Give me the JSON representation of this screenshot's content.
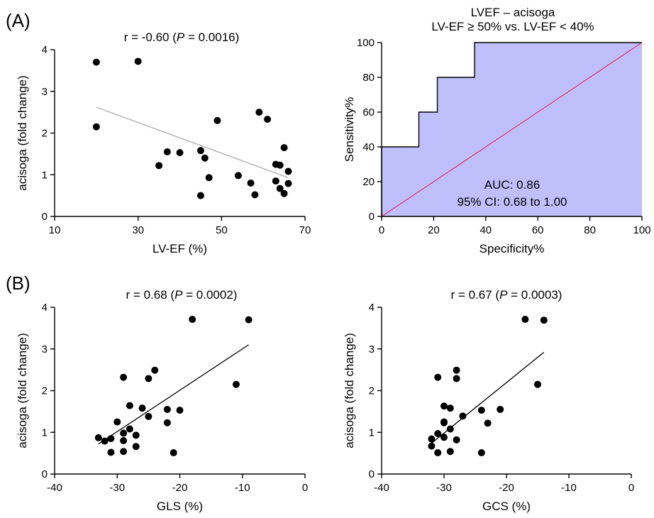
{
  "panel_labels": {
    "a": "(A)",
    "b": "(B)"
  },
  "chart_data": [
    {
      "id": "scatter-lvef",
      "type": "scatter",
      "title": "r = -0.60 (P = 0.0016)",
      "title_parts": [
        "r = -0.60 (",
        "P",
        " = 0.0016)"
      ],
      "xlabel": "LV-EF (%)",
      "ylabel": "acisoga (fold change)",
      "xlim": [
        10,
        70
      ],
      "ylim": [
        0,
        4
      ],
      "xticks": [
        10,
        30,
        50,
        70
      ],
      "yticks": [
        0,
        1,
        2,
        3,
        4
      ],
      "fit_line": {
        "x": [
          20,
          66
        ],
        "y": [
          2.62,
          0.93
        ],
        "color": "#aaaaaa"
      },
      "points": {
        "x": [
          20,
          20,
          30,
          35,
          37,
          40,
          45,
          45,
          46,
          47,
          49,
          54,
          57,
          58,
          59,
          61,
          63,
          63,
          64,
          64,
          65,
          65,
          66,
          66
        ],
        "y": [
          3.7,
          2.15,
          3.72,
          1.22,
          1.55,
          1.53,
          1.58,
          0.5,
          1.4,
          0.93,
          2.3,
          0.98,
          0.8,
          0.52,
          2.5,
          2.33,
          1.25,
          0.85,
          1.23,
          0.67,
          1.65,
          0.55,
          1.08,
          0.79
        ]
      }
    },
    {
      "id": "roc",
      "type": "area",
      "title": "LVEF – acisoga",
      "subtitle": "LV-EF ≥ 50% vs. LV-EF < 40%",
      "xlabel": "Specificity%",
      "ylabel": "Sensitivity%",
      "xlim": [
        0,
        100
      ],
      "ylim": [
        0,
        100
      ],
      "xticks": [
        0,
        20,
        40,
        60,
        80,
        100
      ],
      "yticks": [
        0,
        20,
        40,
        60,
        80,
        100
      ],
      "roc_curve": {
        "x": [
          0,
          0,
          14.3,
          14.3,
          21.4,
          21.4,
          35.7,
          35.7,
          100
        ],
        "y": [
          0,
          40,
          40,
          60,
          60,
          80,
          80,
          100,
          100
        ]
      },
      "fill_color": "#bfbffc",
      "reference_line_color": "#e0306a",
      "annotation": [
        "AUC: 0.86",
        "95% CI: 0.68 to 1.00"
      ]
    },
    {
      "id": "scatter-gls",
      "type": "scatter",
      "title": "r = 0.68 (P = 0.0002)",
      "title_parts": [
        "r = 0.68 (",
        "P",
        " = 0.0002)"
      ],
      "xlabel": "GLS (%)",
      "ylabel": "acisoga (fold change)",
      "xlim": [
        -40,
        0
      ],
      "ylim": [
        0,
        4
      ],
      "xticks": [
        -40,
        -30,
        -20,
        -10,
        0
      ],
      "yticks": [
        0,
        1,
        2,
        3,
        4
      ],
      "fit_line": {
        "x": [
          -33,
          -9
        ],
        "y": [
          0.72,
          3.1
        ],
        "color": "#000000"
      },
      "points": {
        "x": [
          -33,
          -32,
          -31,
          -31,
          -30,
          -29,
          -29,
          -29,
          -29,
          -28,
          -28,
          -27,
          -27,
          -26,
          -25,
          -25,
          -24,
          -22,
          -22,
          -21,
          -20,
          -18,
          -11,
          -9
        ],
        "y": [
          0.87,
          0.79,
          0.85,
          0.52,
          1.25,
          0.8,
          0.54,
          0.98,
          2.32,
          1.08,
          1.64,
          0.93,
          0.66,
          1.58,
          1.38,
          2.29,
          2.49,
          1.55,
          1.23,
          0.51,
          1.53,
          3.71,
          2.15,
          3.7
        ]
      }
    },
    {
      "id": "scatter-gcs",
      "type": "scatter",
      "title": "r = 0.67 (P = 0.0003)",
      "title_parts": [
        "r = 0.67 (",
        "P",
        " = 0.0003)"
      ],
      "xlabel": "GCS (%)",
      "ylabel": "acisoga (fold change)",
      "xlim": [
        -40,
        0
      ],
      "ylim": [
        0,
        4
      ],
      "xticks": [
        -40,
        -30,
        -20,
        -10,
        0
      ],
      "yticks": [
        0,
        1,
        2,
        3,
        4
      ],
      "fit_line": {
        "x": [
          -32,
          -14
        ],
        "y": [
          0.74,
          2.92
        ],
        "color": "#000000"
      },
      "points": {
        "x": [
          -32,
          -32,
          -31,
          -31,
          -31,
          -30,
          -30,
          -30,
          -30,
          -29,
          -29,
          -29,
          -28,
          -28,
          -28,
          -27,
          -24,
          -24,
          -23,
          -21,
          -17,
          -15,
          -14
        ],
        "y": [
          0.84,
          0.67,
          0.51,
          0.97,
          2.32,
          1.63,
          0.88,
          1.25,
          1.23,
          1.58,
          1.08,
          0.54,
          2.49,
          2.29,
          0.82,
          1.39,
          1.53,
          0.51,
          1.22,
          1.55,
          3.71,
          2.15,
          3.69
        ]
      }
    }
  ]
}
